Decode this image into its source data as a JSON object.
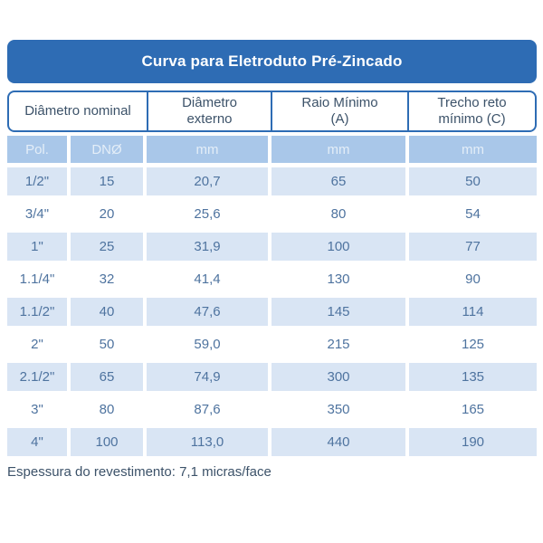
{
  "title": "Curva para Eletroduto Pré-Zincado",
  "colors": {
    "title_bar_bg": "#2E6CB4",
    "border_blue": "#2E6CB4",
    "subheader_bg": "#A9C7E9",
    "stripe_row_bg": "#D9E5F4",
    "data_text": "#4E739F",
    "header_text": "#3C5269",
    "title_text": "#FFFFFF"
  },
  "table": {
    "column_groups": {
      "diametro_nominal": "Diâmetro nominal",
      "diametro_externo": "Diâmetro\nexterno",
      "raio_minimo": "Raio Mínimo\n(A)",
      "trecho_reto": "Trecho reto\nmínimo (C)"
    },
    "subheader": [
      "Pol.",
      "DNØ",
      "mm",
      "mm",
      "mm"
    ],
    "rows": [
      [
        "1/2\"",
        "15",
        "20,7",
        "65",
        "50"
      ],
      [
        "3/4\"",
        "20",
        "25,6",
        "80",
        "54"
      ],
      [
        "1\"",
        "25",
        "31,9",
        "100",
        "77"
      ],
      [
        "1.1/4\"",
        "32",
        "41,4",
        "130",
        "90"
      ],
      [
        "1.1/2\"",
        "40",
        "47,6",
        "145",
        "114"
      ],
      [
        "2\"",
        "50",
        "59,0",
        "215",
        "125"
      ],
      [
        "2.1/2\"",
        "65",
        "74,9",
        "300",
        "135"
      ],
      [
        "3\"",
        "80",
        "87,6",
        "350",
        "165"
      ],
      [
        "4\"",
        "100",
        "113,0",
        "440",
        "190"
      ]
    ]
  },
  "footer": "Espessura do revestimento: 7,1 micras/face"
}
